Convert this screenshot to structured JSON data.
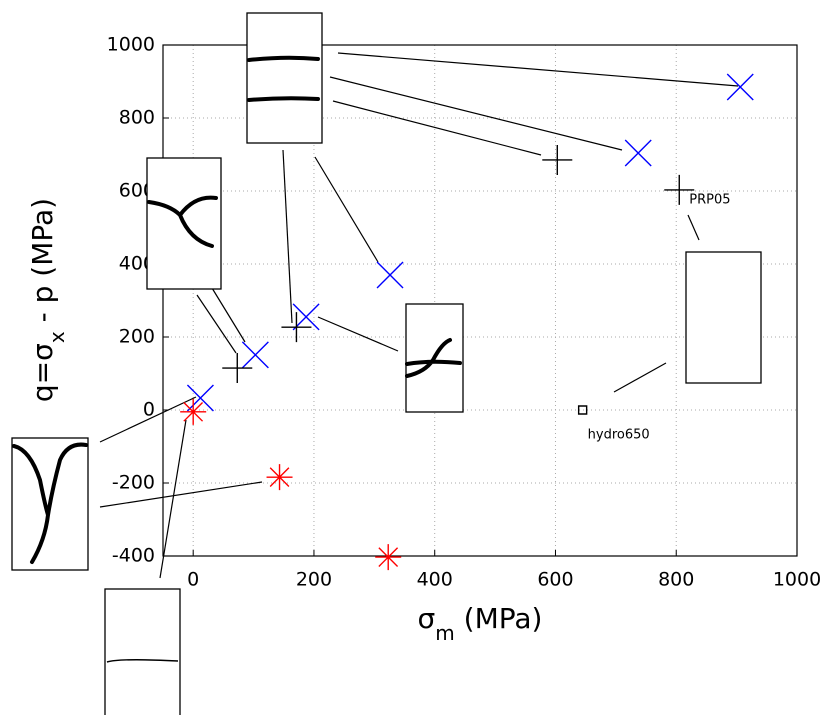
{
  "chart_data": {
    "type": "scatter",
    "xlabel": {
      "main": "σ",
      "sub": "m",
      "rest": " (MPa)"
    },
    "ylabel": {
      "main": "q=σ",
      "sub": "x",
      "rest": " - p (MPa)"
    },
    "xlim": [
      -50,
      1000
    ],
    "ylim": [
      -400,
      1000
    ],
    "xticks": [
      0,
      200,
      400,
      600,
      800,
      1000
    ],
    "yticks": [
      -400,
      -200,
      0,
      200,
      400,
      600,
      800,
      1000
    ],
    "grid": true,
    "series": [
      {
        "marker": "x",
        "color": "#0000ff",
        "x": [
          906,
          737,
          326,
          187,
          103,
          12
        ],
        "y": [
          885,
          704,
          370,
          255,
          151,
          33
        ]
      },
      {
        "marker": "+",
        "color": "#000000",
        "x": [
          603,
          805,
          171,
          73
        ],
        "y": [
          685,
          603,
          227,
          115
        ]
      },
      {
        "marker": "*",
        "color": "#ff0000",
        "x": [
          0,
          143,
          323
        ],
        "y": [
          -5,
          -184,
          -403
        ]
      },
      {
        "marker": "s",
        "color": "#000000",
        "x": [
          645
        ],
        "y": [
          0
        ]
      }
    ],
    "annotations": [
      {
        "text": "PRP05",
        "x": 805,
        "y": 603
      },
      {
        "text": "hydro650",
        "x": 645,
        "y": 0
      }
    ]
  }
}
